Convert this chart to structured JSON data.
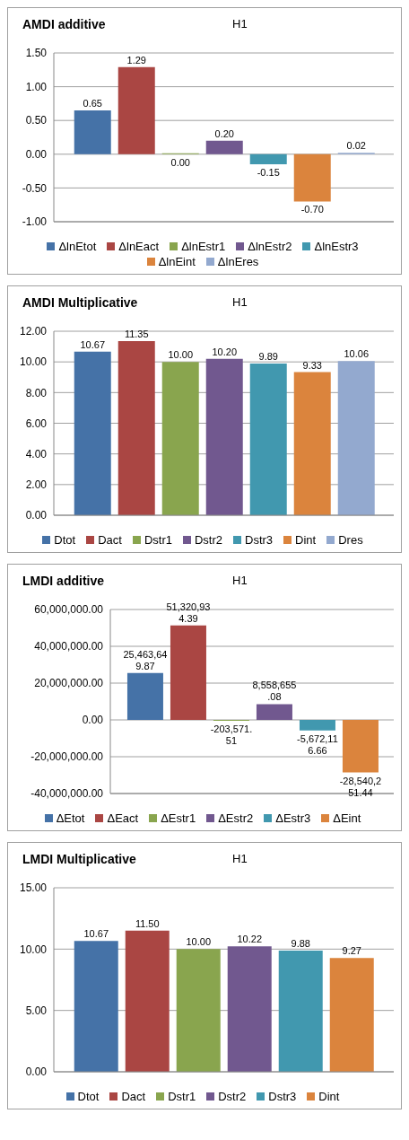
{
  "chart_data": [
    {
      "type": "bar",
      "title": "AMDI additive",
      "subtitle": "H1",
      "categories": [
        null
      ],
      "legend": "bottom",
      "grid": "y",
      "ylim": [
        -1,
        1.5
      ],
      "yticks": [
        {
          "value": -1,
          "label": "-1.00"
        },
        {
          "value": -0.5,
          "label": "-0.50"
        },
        {
          "value": 0,
          "label": "0.00"
        },
        {
          "value": 0.5,
          "label": "0.50"
        },
        {
          "value": 1,
          "label": "1.00"
        },
        {
          "value": 1.5,
          "label": "1.50"
        }
      ],
      "series": [
        {
          "name": "ΔlnEtot",
          "color": "#4572a7",
          "values": [
            0.65
          ],
          "value_labels": [
            "0.65"
          ]
        },
        {
          "name": "ΔlnEact",
          "color": "#aa4643",
          "values": [
            1.29
          ],
          "value_labels": [
            "1.29"
          ]
        },
        {
          "name": "ΔlnEstr1",
          "color": "#89a54e",
          "values": [
            0.0
          ],
          "value_labels": [
            "0.00"
          ]
        },
        {
          "name": "ΔlnEstr2",
          "color": "#71588f",
          "values": [
            0.2
          ],
          "value_labels": [
            "0.20"
          ]
        },
        {
          "name": "ΔlnEstr3",
          "color": "#4198af",
          "values": [
            -0.15
          ],
          "value_labels": [
            "-0.15"
          ]
        },
        {
          "name": "ΔlnEint",
          "color": "#db843d",
          "values": [
            -0.7
          ],
          "value_labels": [
            "-0.70"
          ]
        },
        {
          "name": "ΔlnEres",
          "color": "#93a9cf",
          "values": [
            0.02
          ],
          "value_labels": [
            "0.02"
          ]
        }
      ]
    },
    {
      "type": "bar",
      "title": "AMDI Multiplicative",
      "subtitle": "H1",
      "categories": [
        null
      ],
      "legend": "bottom",
      "grid": "y",
      "ylim": [
        0,
        12
      ],
      "yticks": [
        {
          "value": 0,
          "label": "0.00"
        },
        {
          "value": 2,
          "label": "2.00"
        },
        {
          "value": 4,
          "label": "4.00"
        },
        {
          "value": 6,
          "label": "6.00"
        },
        {
          "value": 8,
          "label": "8.00"
        },
        {
          "value": 10,
          "label": "10.00"
        },
        {
          "value": 12,
          "label": "12.00"
        }
      ],
      "series": [
        {
          "name": "Dtot",
          "color": "#4572a7",
          "values": [
            10.67
          ],
          "value_labels": [
            "10.67"
          ]
        },
        {
          "name": "Dact",
          "color": "#aa4643",
          "values": [
            11.35
          ],
          "value_labels": [
            "11.35"
          ]
        },
        {
          "name": "Dstr1",
          "color": "#89a54e",
          "values": [
            10.0
          ],
          "value_labels": [
            "10.00"
          ]
        },
        {
          "name": "Dstr2",
          "color": "#71588f",
          "values": [
            10.2
          ],
          "value_labels": [
            "10.20"
          ]
        },
        {
          "name": "Dstr3",
          "color": "#4198af",
          "values": [
            9.89
          ],
          "value_labels": [
            "9.89"
          ]
        },
        {
          "name": "Dint",
          "color": "#db843d",
          "values": [
            9.33
          ],
          "value_labels": [
            "9.33"
          ]
        },
        {
          "name": "Dres",
          "color": "#93a9cf",
          "values": [
            10.06
          ],
          "value_labels": [
            "10.06"
          ]
        }
      ]
    },
    {
      "type": "bar",
      "title": "LMDI additive",
      "subtitle": "H1",
      "categories": [
        null
      ],
      "legend": "bottom",
      "grid": "y",
      "ylim": [
        -40000000,
        60000000
      ],
      "yticks": [
        {
          "value": -40000000,
          "label": "-40,000,000.00"
        },
        {
          "value": -20000000,
          "label": "-20,000,000.00"
        },
        {
          "value": 0,
          "label": "0.00"
        },
        {
          "value": 20000000,
          "label": "20,000,000.00"
        },
        {
          "value": 40000000,
          "label": "40,000,000.00"
        },
        {
          "value": 60000000,
          "label": "60,000,000.00"
        }
      ],
      "series": [
        {
          "name": "ΔEtot",
          "color": "#4572a7",
          "values": [
            25463649.87
          ],
          "value_labels": [
            "25,463,649.87"
          ]
        },
        {
          "name": "ΔEact",
          "color": "#aa4643",
          "values": [
            51320934.39
          ],
          "value_labels": [
            "51,320,934.39"
          ]
        },
        {
          "name": "ΔEstr1",
          "color": "#89a54e",
          "values": [
            -203571.51
          ],
          "value_labels": [
            "-203,571.51"
          ]
        },
        {
          "name": "ΔEstr2",
          "color": "#71588f",
          "values": [
            8558655.08
          ],
          "value_labels": [
            "8,558,655.08"
          ]
        },
        {
          "name": "ΔEstr3",
          "color": "#4198af",
          "values": [
            -5672116.66
          ],
          "value_labels": [
            "-5,672,116.66"
          ]
        },
        {
          "name": "ΔEint",
          "color": "#db843d",
          "values": [
            -28540251.44
          ],
          "value_labels": [
            "-28,540,251.44"
          ]
        }
      ]
    },
    {
      "type": "bar",
      "title": "LMDI Multiplicative",
      "subtitle": "H1",
      "categories": [
        null
      ],
      "legend": "bottom",
      "grid": "y",
      "ylim": [
        0,
        15
      ],
      "yticks": [
        {
          "value": 0,
          "label": "0.00"
        },
        {
          "value": 5,
          "label": "5.00"
        },
        {
          "value": 10,
          "label": "10.00"
        },
        {
          "value": 15,
          "label": "15.00"
        }
      ],
      "series": [
        {
          "name": "Dtot",
          "color": "#4572a7",
          "values": [
            10.67
          ],
          "value_labels": [
            "10.67"
          ]
        },
        {
          "name": "Dact",
          "color": "#aa4643",
          "values": [
            11.5
          ],
          "value_labels": [
            "11.50"
          ]
        },
        {
          "name": "Dstr1",
          "color": "#89a54e",
          "values": [
            10.0
          ],
          "value_labels": [
            "10.00"
          ]
        },
        {
          "name": "Dstr2",
          "color": "#71588f",
          "values": [
            10.22
          ],
          "value_labels": [
            "10.22"
          ]
        },
        {
          "name": "Dstr3",
          "color": "#4198af",
          "values": [
            9.88
          ],
          "value_labels": [
            "9.88"
          ]
        },
        {
          "name": "Dint",
          "color": "#db843d",
          "values": [
            9.27
          ],
          "value_labels": [
            "9.27"
          ]
        }
      ]
    }
  ]
}
